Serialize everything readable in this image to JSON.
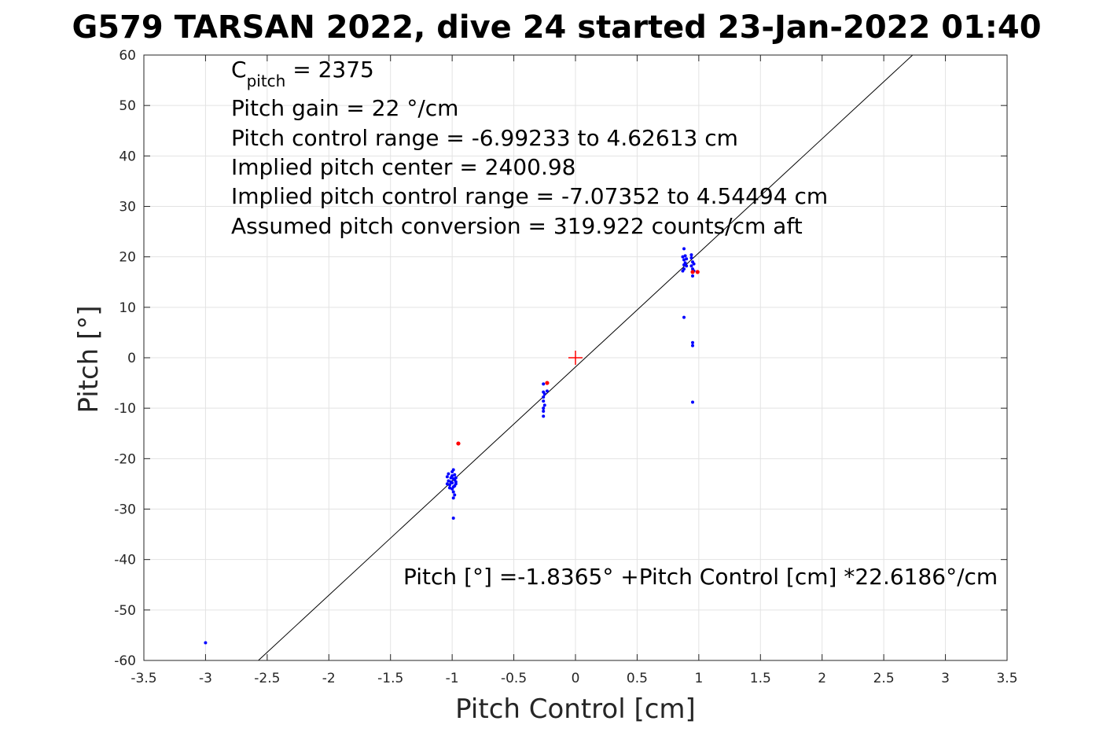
{
  "chart_data": {
    "type": "scatter",
    "title": "G579 TARSAN 2022, dive 24 started 23-Jan-2022 01:40",
    "xlabel": "Pitch Control [cm]",
    "ylabel": "Pitch [°]",
    "xlim": [
      -3.5,
      3.5
    ],
    "ylim": [
      -60,
      60
    ],
    "grid": true,
    "xticks": [
      -3.5,
      -3,
      -2.5,
      -2,
      -1.5,
      -1,
      -0.5,
      0,
      0.5,
      1,
      1.5,
      2,
      2.5,
      3,
      3.5
    ],
    "xtick_labels": [
      "-3.5",
      "-3",
      "-2.5",
      "-2",
      "-1.5",
      "-1",
      "-0.5",
      "0",
      "0.5",
      "1",
      "1.5",
      "2",
      "2.5",
      "3",
      "3.5"
    ],
    "yticks": [
      -60,
      -50,
      -40,
      -30,
      -20,
      -10,
      0,
      10,
      20,
      30,
      40,
      50,
      60
    ],
    "ytick_labels": [
      "-60",
      "-50",
      "-40",
      "-30",
      "-20",
      "-10",
      "0",
      "10",
      "20",
      "30",
      "40",
      "50",
      "60"
    ],
    "annotations": {
      "cpitch_base": "C",
      "cpitch_sub": "pitch",
      "cpitch_value": " = 2375",
      "pitch_gain": "Pitch gain = 22 °/cm",
      "control_range": "Pitch control range = -6.99233 to 4.62613 cm",
      "implied_center": "Implied pitch center = 2400.98",
      "implied_range": "Implied pitch control range = -7.07352 to 4.54494 cm",
      "conversion": "Assumed pitch conversion = 319.922 counts/cm aft",
      "fit_equation": "Pitch [°] =-1.8365° +Pitch Control [cm] *22.6186°/cm"
    },
    "fit_line": {
      "intercept": -1.8365,
      "slope": 22.6186,
      "color": "#000000"
    },
    "center_marker": {
      "x": 0,
      "y": 0,
      "color": "#ff0000"
    },
    "series": [
      {
        "color": "#0000ff",
        "points": [
          [
            -3.0,
            -56.5
          ],
          [
            -1.04,
            -23.6
          ],
          [
            -1.03,
            -24.4
          ],
          [
            -1.02,
            -25.2
          ],
          [
            -1.01,
            -23.8
          ],
          [
            -1.0,
            -24.8
          ],
          [
            -0.99,
            -25.6
          ],
          [
            -0.98,
            -24.2
          ],
          [
            -0.97,
            -25.0
          ],
          [
            -1.03,
            -23.0
          ],
          [
            -1.02,
            -25.8
          ],
          [
            -1.01,
            -24.6
          ],
          [
            -1.0,
            -23.4
          ],
          [
            -0.99,
            -24.0
          ],
          [
            -0.98,
            -25.4
          ],
          [
            -0.97,
            -24.6
          ],
          [
            -1.0,
            -26.0
          ],
          [
            -0.99,
            -26.6
          ],
          [
            -0.98,
            -27.2
          ],
          [
            -0.99,
            -27.8
          ],
          [
            -1.0,
            -22.6
          ],
          [
            -0.99,
            -22.2
          ],
          [
            -0.98,
            -23.2
          ],
          [
            -1.04,
            -25.0
          ],
          [
            -0.97,
            -23.8
          ],
          [
            -0.99,
            -31.8
          ],
          [
            -0.26,
            -5.2
          ],
          [
            -0.26,
            -6.8
          ],
          [
            -0.25,
            -7.2
          ],
          [
            -0.26,
            -7.8
          ],
          [
            -0.26,
            -8.6
          ],
          [
            -0.25,
            -9.4
          ],
          [
            -0.26,
            -10.0
          ],
          [
            -0.26,
            -10.6
          ],
          [
            -0.26,
            -11.6
          ],
          [
            -0.23,
            -6.6
          ],
          [
            0.88,
            21.6
          ],
          [
            0.87,
            20.0
          ],
          [
            0.88,
            19.4
          ],
          [
            0.89,
            18.8
          ],
          [
            0.9,
            18.2
          ],
          [
            0.88,
            17.6
          ],
          [
            0.87,
            17.2
          ],
          [
            0.89,
            20.2
          ],
          [
            0.9,
            19.6
          ],
          [
            0.88,
            18.4
          ],
          [
            0.94,
            19.8
          ],
          [
            0.95,
            19.0
          ],
          [
            0.94,
            18.2
          ],
          [
            0.95,
            17.6
          ],
          [
            0.96,
            18.6
          ],
          [
            0.94,
            20.4
          ],
          [
            0.95,
            17.0
          ],
          [
            0.95,
            16.2
          ],
          [
            0.96,
            17.2
          ],
          [
            0.88,
            8.0
          ],
          [
            0.95,
            3.0
          ],
          [
            0.95,
            2.4
          ],
          [
            0.95,
            -8.8
          ]
        ]
      },
      {
        "color": "#ff0000",
        "points": [
          [
            -0.95,
            -17.0
          ],
          [
            -0.23,
            -5.0
          ],
          [
            0.99,
            17.0
          ],
          [
            0.95,
            17.0
          ]
        ]
      }
    ]
  }
}
